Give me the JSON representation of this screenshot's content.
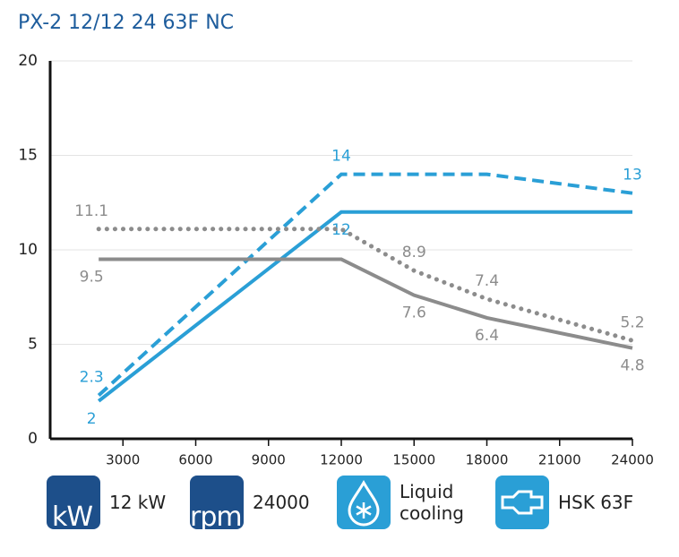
{
  "chart_data": {
    "type": "line",
    "title": "PX-2 12/12 24 63F NC",
    "xlim": [
      0,
      24000
    ],
    "xticks": [
      3000,
      6000,
      9000,
      12000,
      15000,
      18000,
      21000,
      24000
    ],
    "ylim": [
      0,
      20
    ],
    "yticks": [
      0,
      5,
      10,
      15,
      20
    ],
    "grid": true,
    "series": [
      {
        "color": "#2a9fd6",
        "dash": "dashed",
        "x": [
          2000,
          12000,
          18000,
          24000
        ],
        "values": [
          2.3,
          14,
          14,
          13
        ],
        "value_labels": [
          "2.3",
          "14",
          null,
          "13"
        ]
      },
      {
        "color": "#2a9fd6",
        "dash": "solid",
        "x": [
          2000,
          12000,
          24000
        ],
        "values": [
          2,
          12,
          12
        ],
        "value_labels": [
          "2",
          "12",
          null
        ]
      },
      {
        "color": "#8c8c8c",
        "dash": "dotted",
        "x": [
          2000,
          12000,
          15000,
          18000,
          24000
        ],
        "values": [
          11.1,
          11.1,
          8.9,
          7.4,
          5.2
        ],
        "value_labels": [
          "11.1",
          null,
          "8.9",
          "7.4",
          "5.2"
        ]
      },
      {
        "color": "#8c8c8c",
        "dash": "solid",
        "x": [
          2000,
          12000,
          15000,
          18000,
          24000
        ],
        "values": [
          9.5,
          9.5,
          7.6,
          6.4,
          4.8
        ],
        "value_labels": [
          "9.5",
          null,
          "7.6",
          "6.4",
          "4.8"
        ]
      }
    ]
  },
  "specs": [
    {
      "icon": "kW",
      "label": "12 kW"
    },
    {
      "icon": "rpm",
      "label": "24000"
    },
    {
      "label": "Liquid cooling"
    },
    {
      "label": "HSK 63F"
    }
  ]
}
